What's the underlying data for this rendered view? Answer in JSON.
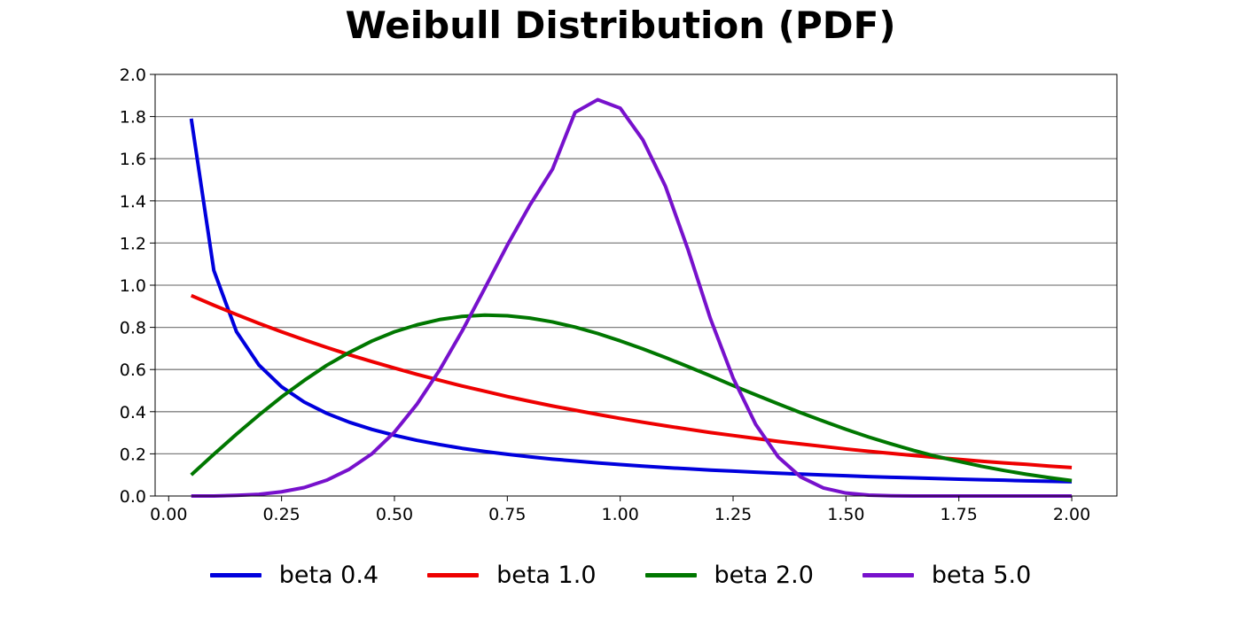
{
  "chart_data": {
    "type": "line",
    "title": "Weibull Distribution (PDF)",
    "xlabel": "",
    "ylabel": "",
    "xlim": [
      -0.03,
      2.1
    ],
    "ylim": [
      0,
      2.0
    ],
    "x_ticks": [
      0.0,
      0.25,
      0.5,
      0.75,
      1.0,
      1.25,
      1.5,
      1.75,
      2.0
    ],
    "x_tick_labels": [
      "0.00",
      "0.25",
      "0.50",
      "0.75",
      "1.00",
      "1.25",
      "1.50",
      "1.75",
      "2.00"
    ],
    "y_ticks": [
      0.0,
      0.2,
      0.4,
      0.6,
      0.8,
      1.0,
      1.2,
      1.4,
      1.6,
      1.8,
      2.0
    ],
    "y_tick_labels": [
      "0.0",
      "0.2",
      "0.4",
      "0.6",
      "0.8",
      "1.0",
      "1.2",
      "1.4",
      "1.6",
      "1.8",
      "2.0"
    ],
    "grid": "horizontal",
    "legend_position": "bottom",
    "x": [
      0.05,
      0.1,
      0.15,
      0.2,
      0.25,
      0.3,
      0.35,
      0.4,
      0.45,
      0.5,
      0.55,
      0.6,
      0.65,
      0.7,
      0.75,
      0.8,
      0.85,
      0.9,
      0.95,
      1.0,
      1.05,
      1.1,
      1.15,
      1.2,
      1.25,
      1.3,
      1.35,
      1.4,
      1.45,
      1.5,
      1.55,
      1.6,
      1.65,
      1.7,
      1.75,
      1.8,
      1.85,
      1.9,
      1.95,
      2.0
    ],
    "series": [
      {
        "name": "beta 0.4",
        "color": "#0000dd",
        "values": [
          1.79,
          1.07,
          0.78,
          0.621,
          0.518,
          0.446,
          0.392,
          0.35,
          0.316,
          0.288,
          0.264,
          0.244,
          0.226,
          0.211,
          0.198,
          0.186,
          0.175,
          0.166,
          0.157,
          0.149,
          0.142,
          0.135,
          0.129,
          0.123,
          0.118,
          0.113,
          0.108,
          0.104,
          0.1,
          0.096,
          0.092,
          0.089,
          0.086,
          0.083,
          0.08,
          0.077,
          0.075,
          0.072,
          0.07,
          0.068
        ]
      },
      {
        "name": "beta 1.0",
        "color": "#ee0000",
        "values": [
          0.951,
          0.905,
          0.861,
          0.819,
          0.779,
          0.741,
          0.705,
          0.67,
          0.638,
          0.607,
          0.577,
          0.549,
          0.522,
          0.497,
          0.472,
          0.449,
          0.427,
          0.407,
          0.387,
          0.368,
          0.35,
          0.333,
          0.317,
          0.301,
          0.287,
          0.273,
          0.259,
          0.247,
          0.235,
          0.223,
          0.212,
          0.202,
          0.192,
          0.183,
          0.174,
          0.165,
          0.157,
          0.15,
          0.142,
          0.135
        ]
      },
      {
        "name": "beta 2.0",
        "color": "#007700",
        "values": [
          0.1,
          0.198,
          0.293,
          0.384,
          0.47,
          0.548,
          0.62,
          0.681,
          0.735,
          0.779,
          0.812,
          0.837,
          0.852,
          0.858,
          0.855,
          0.844,
          0.826,
          0.801,
          0.771,
          0.736,
          0.698,
          0.657,
          0.614,
          0.57,
          0.524,
          0.48,
          0.437,
          0.395,
          0.355,
          0.316,
          0.28,
          0.247,
          0.216,
          0.188,
          0.164,
          0.141,
          0.121,
          0.103,
          0.087,
          0.073
        ]
      },
      {
        "name": "beta 5.0",
        "color": "#7711cc",
        "values": [
          0.0,
          0.0,
          0.003,
          0.008,
          0.02,
          0.04,
          0.075,
          0.127,
          0.2,
          0.303,
          0.436,
          0.597,
          0.783,
          0.985,
          1.19,
          1.38,
          1.55,
          1.82,
          1.88,
          1.84,
          1.69,
          1.47,
          1.17,
          0.84,
          0.56,
          0.34,
          0.185,
          0.09,
          0.038,
          0.014,
          0.004,
          0.001,
          0.0,
          0.0,
          0.0,
          0.0,
          0.0,
          0.0,
          0.0,
          0.0
        ]
      }
    ]
  }
}
